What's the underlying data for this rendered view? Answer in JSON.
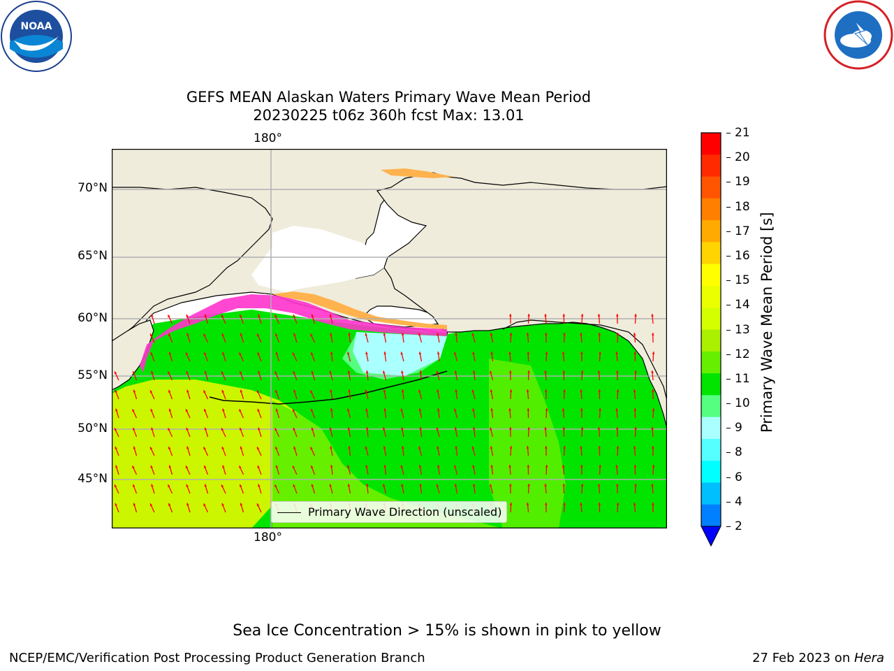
{
  "header": {
    "left_logo": "noaa-logo",
    "right_logo": "nws-logo"
  },
  "title": {
    "line1": "GEFS MEAN Alaskan Waters Primary Wave Mean Period",
    "line2": "20230225 t06z 360h fcst   Max: 13.01"
  },
  "map": {
    "lat_labels": [
      "70°N",
      "65°N",
      "60°N",
      "55°N",
      "50°N",
      "45°N"
    ],
    "lon_label_top": "180°",
    "lon_label_bottom": "180°",
    "legend_label": "Primary Wave Direction (unscaled)",
    "colors": {
      "land": "#efecdc",
      "ocean_green": "#00e400",
      "ocean_lightgreen": "#66f000",
      "ocean_yellowgreen": "#ccf500",
      "ice_pink": "#ff33cc",
      "ice_orange": "#ffb24d",
      "arrow": "#ff0000",
      "grid": "#b0b0b0"
    }
  },
  "colorbar": {
    "title": "Primary Wave Mean Period [s]",
    "ticks": [
      "21",
      "20",
      "19",
      "18",
      "17",
      "16",
      "15",
      "14",
      "13",
      "12",
      "11",
      "10",
      "9",
      "8",
      "6",
      "4",
      "2"
    ],
    "colors": [
      "#ff0000",
      "#ff2a00",
      "#ff5500",
      "#ff7f00",
      "#ffaa00",
      "#ffd400",
      "#ffff00",
      "#ecff00",
      "#d4ff00",
      "#aaf000",
      "#66f000",
      "#00e400",
      "#55ff80",
      "#aaffff",
      "#55ffff",
      "#00ffff",
      "#00bfff",
      "#0080ff"
    ],
    "under_color": "#0000ff"
  },
  "notes": {
    "sea_ice": "Sea Ice Concentration > 15% is shown in pink to yellow"
  },
  "footer": {
    "left": "NCEP/EMC/Verification Post Processing Product Generation Branch",
    "right_date": "27 Feb 2023 on ",
    "right_host": "Hera"
  }
}
